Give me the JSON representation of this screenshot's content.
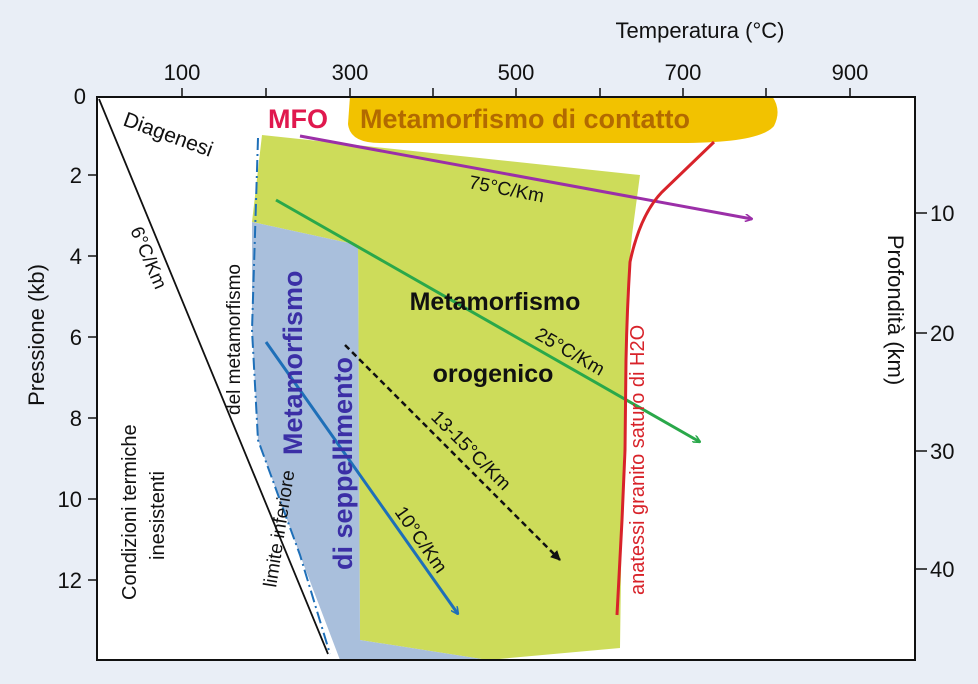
{
  "axes": {
    "top_title": "Temperatura (°C)",
    "top_ticks": [
      "100",
      "300",
      "500",
      "700",
      "900"
    ],
    "left_title": "Pressione (kb)",
    "left_ticks": [
      "0",
      "2",
      "4",
      "6",
      "8",
      "10",
      "12"
    ],
    "right_title": "Profondità (km)",
    "right_ticks": [
      "10",
      "20",
      "30",
      "40"
    ]
  },
  "labels": {
    "mfo": "MFO",
    "contact": "Metamorfismo di contatto",
    "diagenesis": "Diagenesi",
    "orogenic_1": "Metamorfismo",
    "orogenic_2": "orogenico",
    "burial_1": "Metamorfismo",
    "burial_2": "di seppellimento",
    "limit_1": "limite inferiore",
    "limit_2": "del metamorfismo",
    "no_conditions_1": "Condizioni termiche",
    "no_conditions_2": "inesistenti",
    "anatexis": "anatessi granito saturo di H2O"
  },
  "gradients": {
    "g6": "6°C/Km",
    "g75": "75°C/Km",
    "g25": "25°C/Km",
    "g13": "13-15°C/Km",
    "g10": "10°C/Km"
  },
  "colors": {
    "contact": "#f2c200",
    "orogenic": "#cddc5a",
    "burial": "#a9bfdc",
    "mfo": "#e0184e",
    "contact_text": "#b26a00",
    "burial_text": "#3b2fa6",
    "arrow_75": "#9b2fa8",
    "arrow_25": "#2aa84a",
    "arrow_10": "#1e6fb8",
    "anatexis": "#d8232a"
  }
}
